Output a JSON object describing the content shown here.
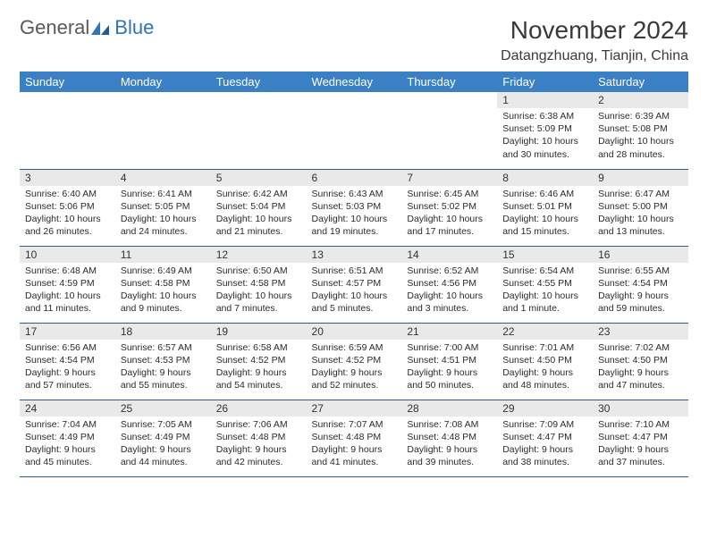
{
  "brand": {
    "part1": "General",
    "part2": "Blue"
  },
  "title": "November 2024",
  "location": "Datangzhuang, Tianjin, China",
  "colors": {
    "header_bg": "#3b7fc4",
    "header_text": "#ffffff",
    "daynum_bg": "#e9e9e9",
    "rule": "#2e5a8a",
    "brand_blue": "#2e75b6",
    "text": "#2b2b2b",
    "page_bg": "#ffffff"
  },
  "weekdays": [
    "Sunday",
    "Monday",
    "Tuesday",
    "Wednesday",
    "Thursday",
    "Friday",
    "Saturday"
  ],
  "weeks": [
    [
      {
        "n": "",
        "sr": "",
        "ss": "",
        "dl": "",
        "empty": true
      },
      {
        "n": "",
        "sr": "",
        "ss": "",
        "dl": "",
        "empty": true
      },
      {
        "n": "",
        "sr": "",
        "ss": "",
        "dl": "",
        "empty": true
      },
      {
        "n": "",
        "sr": "",
        "ss": "",
        "dl": "",
        "empty": true
      },
      {
        "n": "",
        "sr": "",
        "ss": "",
        "dl": "",
        "empty": true
      },
      {
        "n": "1",
        "sr": "Sunrise: 6:38 AM",
        "ss": "Sunset: 5:09 PM",
        "dl": "Daylight: 10 hours and 30 minutes."
      },
      {
        "n": "2",
        "sr": "Sunrise: 6:39 AM",
        "ss": "Sunset: 5:08 PM",
        "dl": "Daylight: 10 hours and 28 minutes."
      }
    ],
    [
      {
        "n": "3",
        "sr": "Sunrise: 6:40 AM",
        "ss": "Sunset: 5:06 PM",
        "dl": "Daylight: 10 hours and 26 minutes."
      },
      {
        "n": "4",
        "sr": "Sunrise: 6:41 AM",
        "ss": "Sunset: 5:05 PM",
        "dl": "Daylight: 10 hours and 24 minutes."
      },
      {
        "n": "5",
        "sr": "Sunrise: 6:42 AM",
        "ss": "Sunset: 5:04 PM",
        "dl": "Daylight: 10 hours and 21 minutes."
      },
      {
        "n": "6",
        "sr": "Sunrise: 6:43 AM",
        "ss": "Sunset: 5:03 PM",
        "dl": "Daylight: 10 hours and 19 minutes."
      },
      {
        "n": "7",
        "sr": "Sunrise: 6:45 AM",
        "ss": "Sunset: 5:02 PM",
        "dl": "Daylight: 10 hours and 17 minutes."
      },
      {
        "n": "8",
        "sr": "Sunrise: 6:46 AM",
        "ss": "Sunset: 5:01 PM",
        "dl": "Daylight: 10 hours and 15 minutes."
      },
      {
        "n": "9",
        "sr": "Sunrise: 6:47 AM",
        "ss": "Sunset: 5:00 PM",
        "dl": "Daylight: 10 hours and 13 minutes."
      }
    ],
    [
      {
        "n": "10",
        "sr": "Sunrise: 6:48 AM",
        "ss": "Sunset: 4:59 PM",
        "dl": "Daylight: 10 hours and 11 minutes."
      },
      {
        "n": "11",
        "sr": "Sunrise: 6:49 AM",
        "ss": "Sunset: 4:58 PM",
        "dl": "Daylight: 10 hours and 9 minutes."
      },
      {
        "n": "12",
        "sr": "Sunrise: 6:50 AM",
        "ss": "Sunset: 4:58 PM",
        "dl": "Daylight: 10 hours and 7 minutes."
      },
      {
        "n": "13",
        "sr": "Sunrise: 6:51 AM",
        "ss": "Sunset: 4:57 PM",
        "dl": "Daylight: 10 hours and 5 minutes."
      },
      {
        "n": "14",
        "sr": "Sunrise: 6:52 AM",
        "ss": "Sunset: 4:56 PM",
        "dl": "Daylight: 10 hours and 3 minutes."
      },
      {
        "n": "15",
        "sr": "Sunrise: 6:54 AM",
        "ss": "Sunset: 4:55 PM",
        "dl": "Daylight: 10 hours and 1 minute."
      },
      {
        "n": "16",
        "sr": "Sunrise: 6:55 AM",
        "ss": "Sunset: 4:54 PM",
        "dl": "Daylight: 9 hours and 59 minutes."
      }
    ],
    [
      {
        "n": "17",
        "sr": "Sunrise: 6:56 AM",
        "ss": "Sunset: 4:54 PM",
        "dl": "Daylight: 9 hours and 57 minutes."
      },
      {
        "n": "18",
        "sr": "Sunrise: 6:57 AM",
        "ss": "Sunset: 4:53 PM",
        "dl": "Daylight: 9 hours and 55 minutes."
      },
      {
        "n": "19",
        "sr": "Sunrise: 6:58 AM",
        "ss": "Sunset: 4:52 PM",
        "dl": "Daylight: 9 hours and 54 minutes."
      },
      {
        "n": "20",
        "sr": "Sunrise: 6:59 AM",
        "ss": "Sunset: 4:52 PM",
        "dl": "Daylight: 9 hours and 52 minutes."
      },
      {
        "n": "21",
        "sr": "Sunrise: 7:00 AM",
        "ss": "Sunset: 4:51 PM",
        "dl": "Daylight: 9 hours and 50 minutes."
      },
      {
        "n": "22",
        "sr": "Sunrise: 7:01 AM",
        "ss": "Sunset: 4:50 PM",
        "dl": "Daylight: 9 hours and 48 minutes."
      },
      {
        "n": "23",
        "sr": "Sunrise: 7:02 AM",
        "ss": "Sunset: 4:50 PM",
        "dl": "Daylight: 9 hours and 47 minutes."
      }
    ],
    [
      {
        "n": "24",
        "sr": "Sunrise: 7:04 AM",
        "ss": "Sunset: 4:49 PM",
        "dl": "Daylight: 9 hours and 45 minutes."
      },
      {
        "n": "25",
        "sr": "Sunrise: 7:05 AM",
        "ss": "Sunset: 4:49 PM",
        "dl": "Daylight: 9 hours and 44 minutes."
      },
      {
        "n": "26",
        "sr": "Sunrise: 7:06 AM",
        "ss": "Sunset: 4:48 PM",
        "dl": "Daylight: 9 hours and 42 minutes."
      },
      {
        "n": "27",
        "sr": "Sunrise: 7:07 AM",
        "ss": "Sunset: 4:48 PM",
        "dl": "Daylight: 9 hours and 41 minutes."
      },
      {
        "n": "28",
        "sr": "Sunrise: 7:08 AM",
        "ss": "Sunset: 4:48 PM",
        "dl": "Daylight: 9 hours and 39 minutes."
      },
      {
        "n": "29",
        "sr": "Sunrise: 7:09 AM",
        "ss": "Sunset: 4:47 PM",
        "dl": "Daylight: 9 hours and 38 minutes."
      },
      {
        "n": "30",
        "sr": "Sunrise: 7:10 AM",
        "ss": "Sunset: 4:47 PM",
        "dl": "Daylight: 9 hours and 37 minutes."
      }
    ]
  ]
}
